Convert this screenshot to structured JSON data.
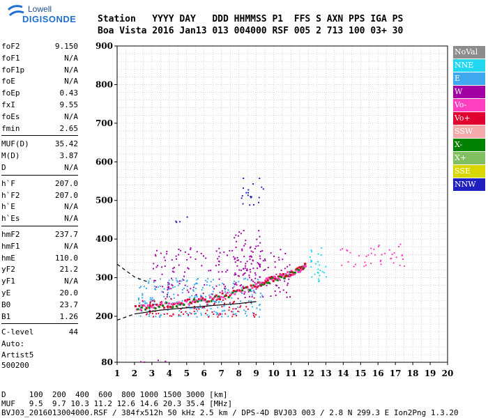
{
  "logo": {
    "line1": "Lowell",
    "line2": "DIGISONDE"
  },
  "header": {
    "line1": "Station   YYYY DAY   DDD HHMMSS P1  FFS S AXN PPS IGA PS",
    "line2": "Boa Vista 2016 Jan13 013 004000 RSF 005 2 713 100 03+ 30"
  },
  "params_group1": [
    {
      "key": "foF2",
      "value": "9.150"
    },
    {
      "key": "foF1",
      "value": "N/A"
    },
    {
      "key": "foF1p",
      "value": "N/A"
    },
    {
      "key": "foE",
      "value": "N/A"
    },
    {
      "key": "foEp",
      "value": "0.43"
    },
    {
      "key": "fxI",
      "value": "9.55"
    },
    {
      "key": "foEs",
      "value": "N/A"
    },
    {
      "key": "fmin",
      "value": "2.65"
    }
  ],
  "params_group2": [
    {
      "key": "MUF(D)",
      "value": "35.42"
    },
    {
      "key": "M(D)",
      "value": "3.87"
    },
    {
      "key": "D",
      "value": "N/A"
    }
  ],
  "params_group3": [
    {
      "key": "h`F",
      "value": "207.0"
    },
    {
      "key": "h`F2",
      "value": "207.0"
    },
    {
      "key": "h`E",
      "value": "N/A"
    },
    {
      "key": "h`Es",
      "value": "N/A"
    }
  ],
  "params_group4": [
    {
      "key": "hmF2",
      "value": "237.7"
    },
    {
      "key": "hmF1",
      "value": "N/A"
    },
    {
      "key": "hmE",
      "value": "110.0"
    },
    {
      "key": "yF2",
      "value": "21.2"
    },
    {
      "key": "yF1",
      "value": "N/A"
    },
    {
      "key": "yE",
      "value": "20.0"
    },
    {
      "key": "B0",
      "value": "23.7"
    },
    {
      "key": "B1",
      "value": "1.26"
    }
  ],
  "params_group5": [
    {
      "key": "C-level",
      "value": "44"
    }
  ],
  "autoscale": {
    "line1": "Auto:",
    "line2": "Artist5",
    "line3": "500200"
  },
  "legend": [
    {
      "label": "NoVal",
      "color": "#8c8c8c"
    },
    {
      "label": "NNE",
      "color": "#21d8f0"
    },
    {
      "label": "E",
      "color": "#3fa8ee"
    },
    {
      "label": "W",
      "color": "#a300a3"
    },
    {
      "label": "Vo-",
      "color": "#ff3fbf"
    },
    {
      "label": "Vo+",
      "color": "#e00030"
    },
    {
      "label": "SSW",
      "color": "#f4aaaa"
    },
    {
      "label": "X-",
      "color": "#008000"
    },
    {
      "label": "X+",
      "color": "#80c060"
    },
    {
      "label": "SSE",
      "color": "#d8d800"
    },
    {
      "label": "NNW",
      "color": "#2020c0"
    }
  ],
  "footer": {
    "line1": "D     100  200  400  600  800 1000 1500 3000 [km]",
    "line2": "MUF   9.5  9.7 10.3 11.2 12.6 14.6 20.3 35.4 [MHz]",
    "line3": "BVJ03_2016013004000.RSF / 384fx512h 50 kHz 2.5 km / DPS-4D BVJ03 003 / 2.8 N 299.3 E Ion2Png 1.3.20"
  },
  "chart_data": {
    "type": "scatter",
    "x_ticks": [
      "1",
      "2",
      "3",
      "4",
      "5",
      "6",
      "7",
      "8",
      "9",
      "10",
      "11",
      "12",
      "13",
      "14",
      "15",
      "16",
      "17",
      "18",
      "19",
      "20"
    ],
    "y_ticks": [
      "80",
      "200",
      "300",
      "400",
      "500",
      "600",
      "700",
      "800",
      "900"
    ],
    "xlim": [
      1,
      20
    ],
    "ylim": [
      80,
      900
    ],
    "y_axis_note": "piecewise-linear: 80 at bottom, 200..900 evenly spaced",
    "grid": true,
    "curve_dashed_upper": [
      [
        1,
        335
      ],
      [
        2,
        302
      ],
      [
        2.7,
        290
      ]
    ],
    "curve_dashed_lower": [
      [
        1,
        190
      ],
      [
        2,
        206
      ]
    ],
    "curve_solid_lower": [
      [
        2,
        206
      ],
      [
        3.5,
        216
      ],
      [
        5,
        222
      ],
      [
        6.5,
        228
      ],
      [
        8,
        233
      ],
      [
        9,
        238
      ]
    ],
    "trace_hprime": [
      [
        2.0,
        225
      ],
      [
        3,
        228
      ],
      [
        4,
        232
      ],
      [
        5,
        240
      ],
      [
        6,
        245
      ],
      [
        7,
        255
      ],
      [
        8,
        266
      ],
      [
        9,
        283
      ],
      [
        9.5,
        294
      ],
      [
        10,
        300
      ],
      [
        10.5,
        307
      ],
      [
        11,
        315
      ],
      [
        11.5,
        325
      ],
      [
        11.8,
        335
      ]
    ],
    "clusters": [
      {
        "x": [
          2.2,
          9.5
        ],
        "y": [
          200,
          300
        ],
        "color": "#3fa8ee",
        "density": 0.6
      },
      {
        "x": [
          2.2,
          9.0
        ],
        "y": [
          200,
          250
        ],
        "color": "#e00030",
        "density": 0.5
      },
      {
        "x": [
          3,
          11
        ],
        "y": [
          250,
          380
        ],
        "color": "#a300a3",
        "density": 0.3
      },
      {
        "x": [
          7.7,
          9.2
        ],
        "y": [
          280,
          430
        ],
        "color": "#a300a3",
        "density": 0.5
      },
      {
        "x": [
          8,
          9.4
        ],
        "y": [
          480,
          560
        ],
        "color": "#2020c0",
        "density": 0.3
      },
      {
        "x": [
          4,
          5
        ],
        "y": [
          440,
          460
        ],
        "color": "#2020c0",
        "density": 0.3
      },
      {
        "x": [
          12,
          13
        ],
        "y": [
          290,
          380
        ],
        "color": "#21d8f0",
        "density": 0.5
      },
      {
        "x": [
          13.7,
          17.5
        ],
        "y": [
          330,
          390
        ],
        "color": "#ff3fbf",
        "density": 0.3
      },
      {
        "x": [
          2,
          4
        ],
        "y": [
          82,
          88
        ],
        "color": "#a300a3",
        "density": 0.5
      }
    ]
  }
}
